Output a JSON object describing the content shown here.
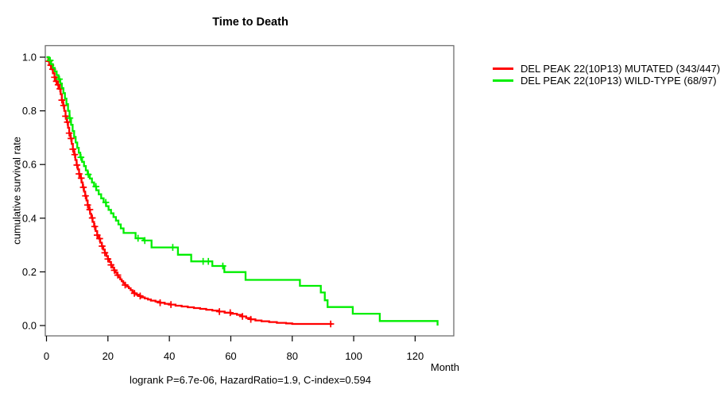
{
  "chart_data": {
    "type": "line",
    "subtype": "kaplan-meier-step",
    "title": "Time to Death",
    "xlabel": "Month",
    "ylabel": "cumulative survival rate",
    "annotation": "logrank P=6.7e-06, HazardRatio=1.9, C-index=0.594",
    "x_ticks": [
      0,
      20,
      40,
      60,
      80,
      100,
      120
    ],
    "y_ticks": [
      0.0,
      0.2,
      0.4,
      0.6,
      0.8,
      1.0
    ],
    "xlim": [
      0,
      133
    ],
    "ylim": [
      0.0,
      1.0
    ],
    "grid": false,
    "legend_position": "top-right-outside",
    "series": [
      {
        "name": "DEL PEAK 22(10P13) MUTATED (343/447)",
        "color": "#ff0000",
        "steps": [
          [
            0,
            1.0
          ],
          [
            0.6,
            0.985
          ],
          [
            1.1,
            0.97
          ],
          [
            1.6,
            0.955
          ],
          [
            2.1,
            0.94
          ],
          [
            2.6,
            0.925
          ],
          [
            3.1,
            0.91
          ],
          [
            3.6,
            0.897
          ],
          [
            4.1,
            0.882
          ],
          [
            4.6,
            0.862
          ],
          [
            5.0,
            0.84
          ],
          [
            5.4,
            0.82
          ],
          [
            5.8,
            0.8
          ],
          [
            6.2,
            0.78
          ],
          [
            6.6,
            0.758
          ],
          [
            7.0,
            0.737
          ],
          [
            7.4,
            0.717
          ],
          [
            7.8,
            0.697
          ],
          [
            8.2,
            0.677
          ],
          [
            8.6,
            0.657
          ],
          [
            9.0,
            0.637
          ],
          [
            9.4,
            0.617
          ],
          [
            9.8,
            0.598
          ],
          [
            10.2,
            0.582
          ],
          [
            10.6,
            0.565
          ],
          [
            11.0,
            0.549
          ],
          [
            11.4,
            0.533
          ],
          [
            11.8,
            0.515
          ],
          [
            12.2,
            0.499
          ],
          [
            12.6,
            0.483
          ],
          [
            13.0,
            0.466
          ],
          [
            13.4,
            0.449
          ],
          [
            13.8,
            0.432
          ],
          [
            14.2,
            0.416
          ],
          [
            14.6,
            0.401
          ],
          [
            15.0,
            0.386
          ],
          [
            15.5,
            0.369
          ],
          [
            16.0,
            0.352
          ],
          [
            16.5,
            0.337
          ],
          [
            17.0,
            0.324
          ],
          [
            17.5,
            0.309
          ],
          [
            18.0,
            0.296
          ],
          [
            18.5,
            0.283
          ],
          [
            19.0,
            0.271
          ],
          [
            19.5,
            0.259
          ],
          [
            20.0,
            0.248
          ],
          [
            20.5,
            0.237
          ],
          [
            21.0,
            0.226
          ],
          [
            21.5,
            0.216
          ],
          [
            22.0,
            0.206
          ],
          [
            22.5,
            0.197
          ],
          [
            23.0,
            0.188
          ],
          [
            23.5,
            0.18
          ],
          [
            24.0,
            0.172
          ],
          [
            24.5,
            0.165
          ],
          [
            25.0,
            0.158
          ],
          [
            25.6,
            0.151
          ],
          [
            26.2,
            0.145
          ],
          [
            26.8,
            0.139
          ],
          [
            27.4,
            0.132
          ],
          [
            28.0,
            0.126
          ],
          [
            28.6,
            0.12
          ],
          [
            29.2,
            0.115
          ],
          [
            30.0,
            0.11
          ],
          [
            31.0,
            0.105
          ],
          [
            32.0,
            0.101
          ],
          [
            33.0,
            0.097
          ],
          [
            34.0,
            0.093
          ],
          [
            35.5,
            0.089
          ],
          [
            37.0,
            0.085
          ],
          [
            38.5,
            0.081
          ],
          [
            40.0,
            0.078
          ],
          [
            42.0,
            0.074
          ],
          [
            44.0,
            0.071
          ],
          [
            46.0,
            0.068
          ],
          [
            48.0,
            0.065
          ],
          [
            50.0,
            0.062
          ],
          [
            52.0,
            0.059
          ],
          [
            54.0,
            0.056
          ],
          [
            56.0,
            0.052
          ],
          [
            58.0,
            0.048
          ],
          [
            60.0,
            0.044
          ],
          [
            62.0,
            0.04
          ],
          [
            63.5,
            0.034
          ],
          [
            65.0,
            0.028
          ],
          [
            66.5,
            0.023
          ],
          [
            68.0,
            0.019
          ],
          [
            70.0,
            0.016
          ],
          [
            72.5,
            0.013
          ],
          [
            75.0,
            0.01
          ],
          [
            78.0,
            0.008
          ],
          [
            80.0,
            0.006
          ],
          [
            93.0,
            0.006
          ]
        ],
        "censor_months": [
          0.8,
          1.4,
          2.0,
          2.6,
          3.2,
          3.8,
          4.4,
          5.0,
          5.6,
          6.2,
          6.8,
          7.4,
          8.0,
          8.6,
          9.2,
          9.9,
          10.6,
          11.3,
          12.0,
          12.7,
          13.4,
          14.1,
          14.9,
          15.7,
          16.5,
          17.3,
          18.1,
          19.0,
          20.0,
          21.0,
          22.1,
          23.2,
          25.6,
          28.6,
          30.5,
          37.0,
          40.5,
          56.3,
          59.8,
          63.8,
          66.5,
          92.5
        ]
      },
      {
        "name": "DEL PEAK 22(10P13) WILD-TYPE (68/97)",
        "color": "#00ee00",
        "steps": [
          [
            0,
            1.0
          ],
          [
            0.8,
            0.988
          ],
          [
            1.5,
            0.974
          ],
          [
            2.1,
            0.96
          ],
          [
            2.7,
            0.947
          ],
          [
            3.3,
            0.933
          ],
          [
            3.9,
            0.918
          ],
          [
            4.5,
            0.902
          ],
          [
            5.0,
            0.885
          ],
          [
            5.5,
            0.866
          ],
          [
            6.0,
            0.846
          ],
          [
            6.5,
            0.825
          ],
          [
            7.0,
            0.8
          ],
          [
            7.5,
            0.773
          ],
          [
            8.0,
            0.748
          ],
          [
            8.5,
            0.725
          ],
          [
            9.0,
            0.703
          ],
          [
            9.5,
            0.682
          ],
          [
            10.0,
            0.662
          ],
          [
            10.5,
            0.644
          ],
          [
            11.0,
            0.627
          ],
          [
            11.6,
            0.61
          ],
          [
            12.2,
            0.594
          ],
          [
            12.8,
            0.578
          ],
          [
            13.4,
            0.563
          ],
          [
            14.1,
            0.548
          ],
          [
            14.8,
            0.533
          ],
          [
            15.5,
            0.518
          ],
          [
            16.2,
            0.504
          ],
          [
            17.0,
            0.489
          ],
          [
            17.8,
            0.474
          ],
          [
            18.6,
            0.459
          ],
          [
            19.4,
            0.445
          ],
          [
            20.2,
            0.431
          ],
          [
            21.0,
            0.418
          ],
          [
            21.8,
            0.404
          ],
          [
            22.6,
            0.391
          ],
          [
            23.4,
            0.377
          ],
          [
            24.2,
            0.362
          ],
          [
            25.1,
            0.345
          ],
          [
            29.0,
            0.325
          ],
          [
            31.6,
            0.317
          ],
          [
            34.2,
            0.291
          ],
          [
            42.8,
            0.264
          ],
          [
            47.1,
            0.239
          ],
          [
            54.0,
            0.222
          ],
          [
            57.9,
            0.199
          ],
          [
            64.8,
            0.17
          ],
          [
            82.5,
            0.148
          ],
          [
            89.3,
            0.123
          ],
          [
            90.6,
            0.094
          ],
          [
            91.5,
            0.069
          ],
          [
            99.7,
            0.044
          ],
          [
            108.5,
            0.017
          ],
          [
            127.3,
            0.0
          ]
        ],
        "censor_months": [
          1.2,
          4.2,
          7.6,
          11.2,
          13.6,
          16.1,
          19.3,
          29.8,
          32.0,
          41.1,
          51.0,
          52.7,
          57.4
        ]
      }
    ]
  }
}
